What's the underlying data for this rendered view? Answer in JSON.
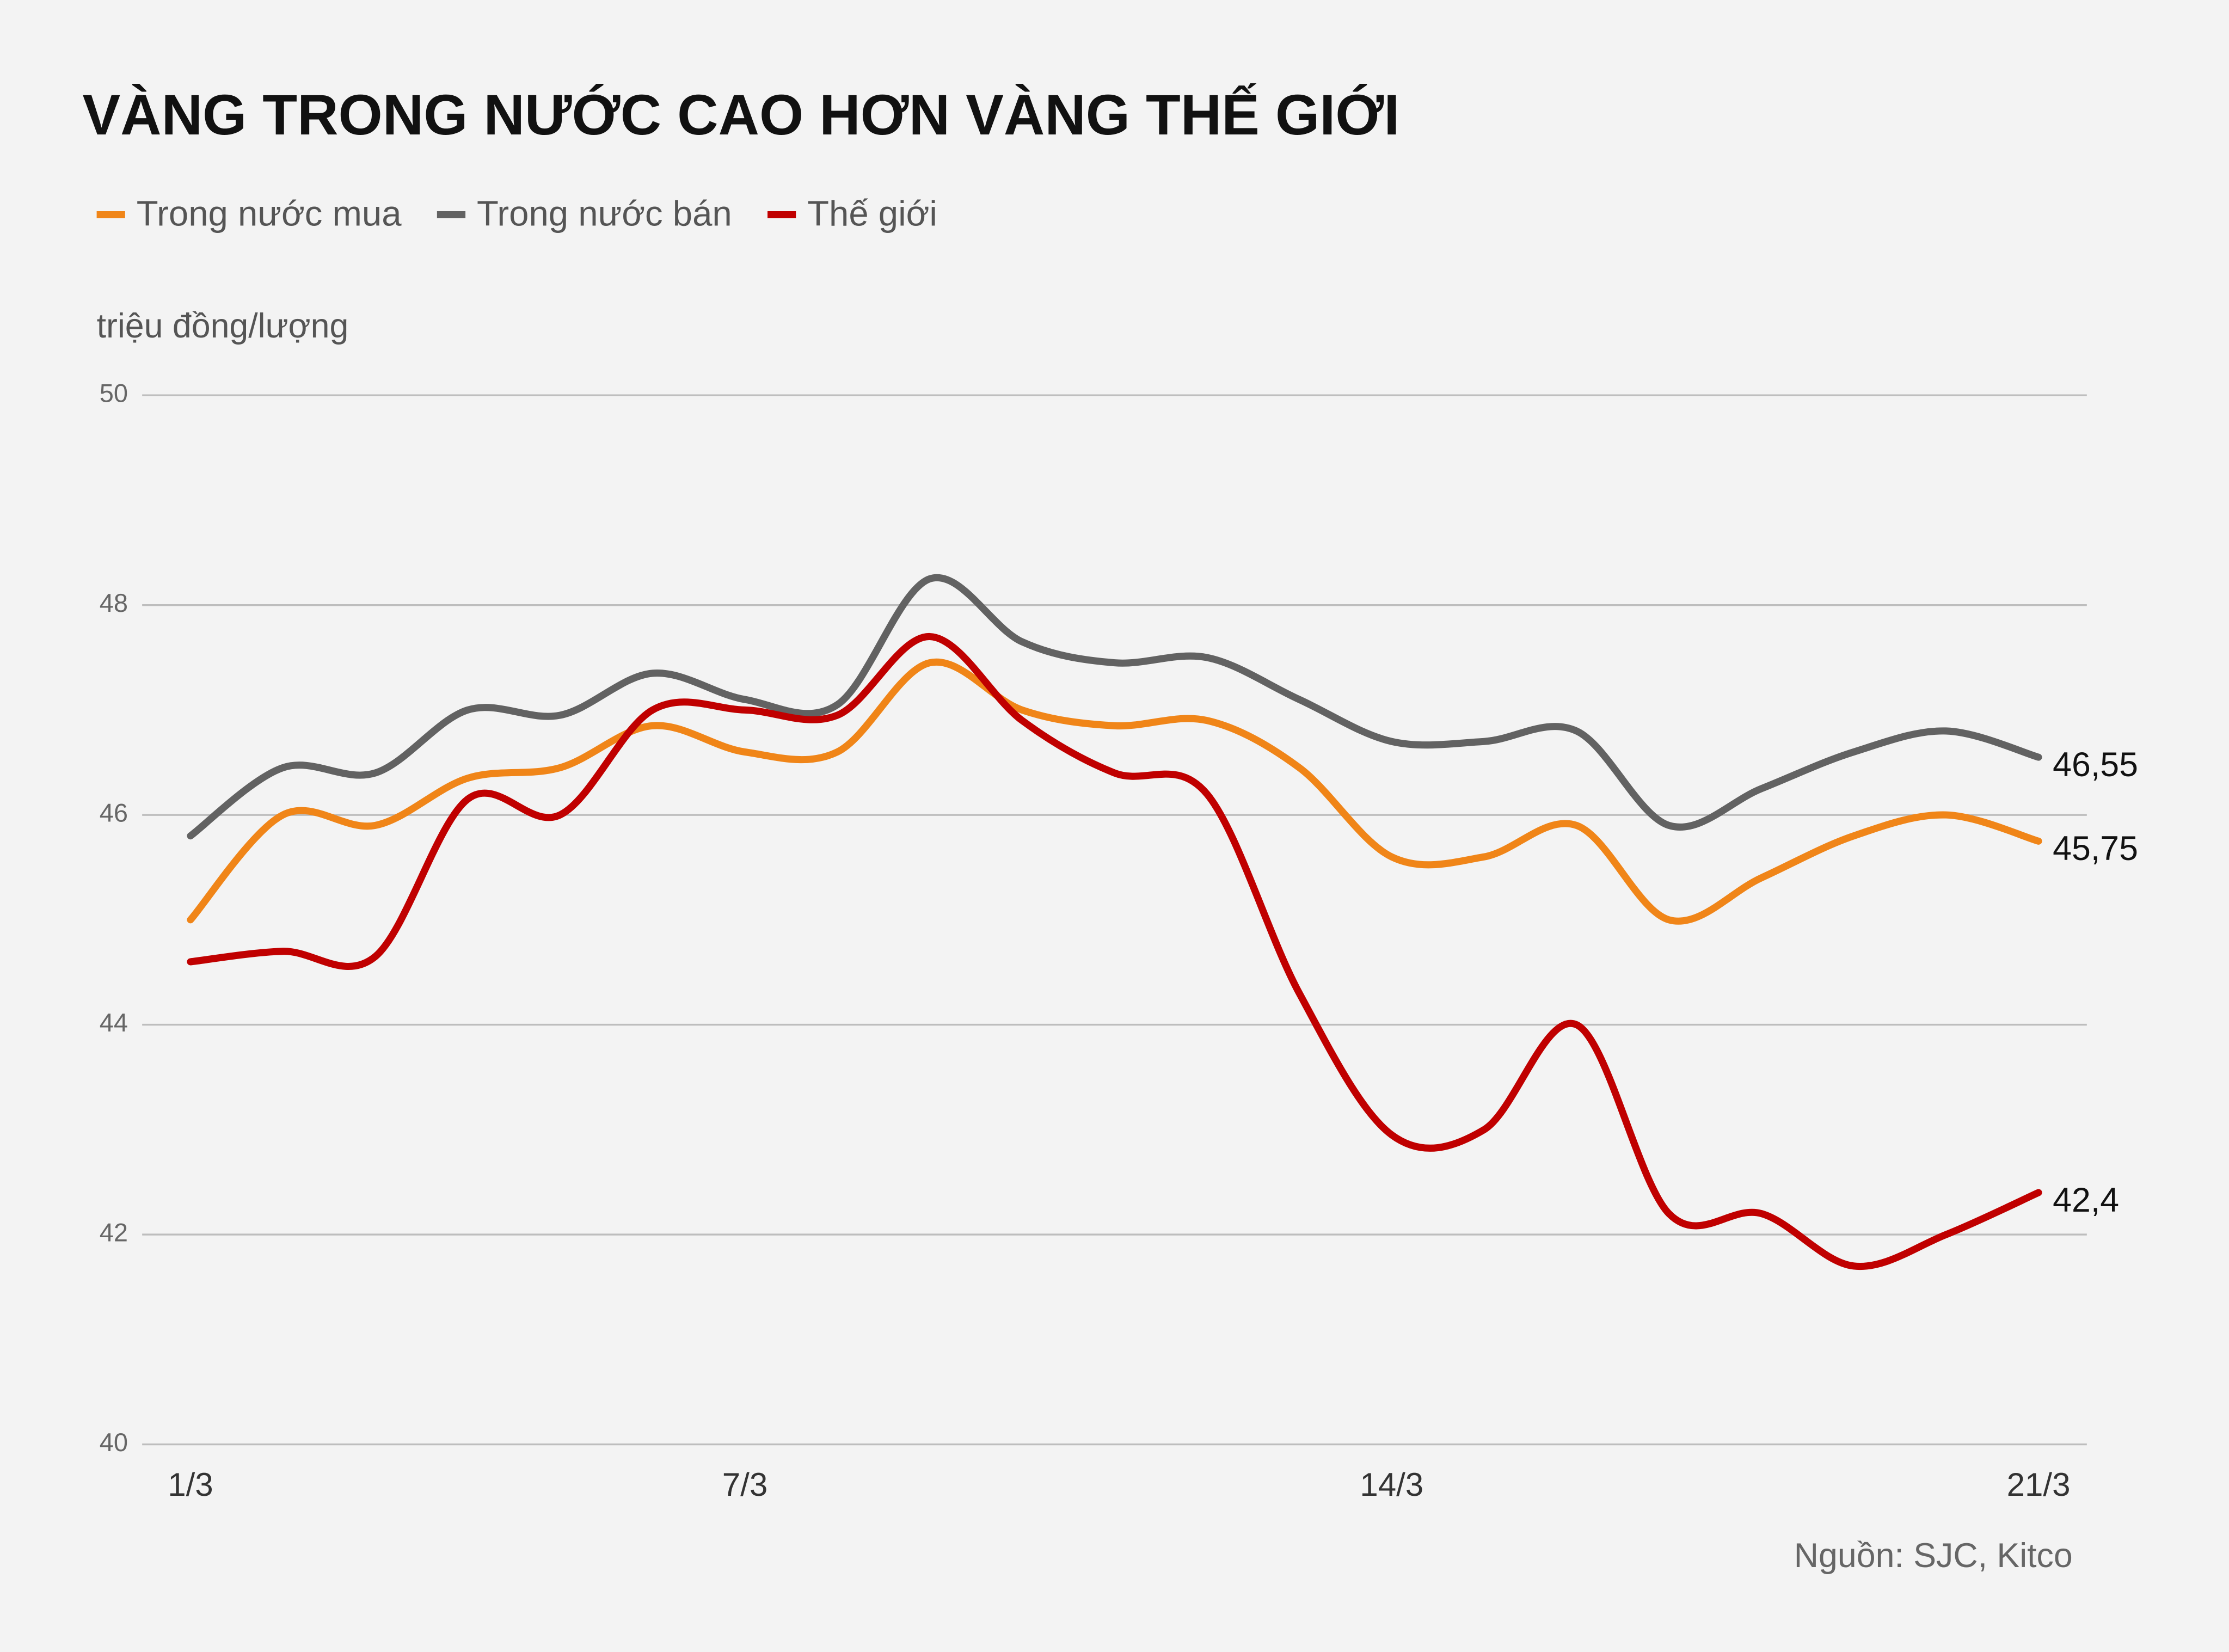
{
  "chart_data": {
    "type": "line",
    "title": "VÀNG TRONG NƯỚC CAO HƠN VÀNG THẾ GIỚI",
    "y_label": "triệu đồng/lượng",
    "source": "Nguồn: SJC, Kitco",
    "categories": [
      "1/3",
      null,
      null,
      null,
      null,
      null,
      "7/3",
      null,
      null,
      null,
      null,
      null,
      null,
      "14/3",
      null,
      null,
      null,
      null,
      null,
      null,
      "21/3"
    ],
    "ylim": [
      40,
      50
    ],
    "yticks": [
      40,
      42,
      44,
      46,
      48,
      50
    ],
    "grid": true,
    "legend": "top-left",
    "series": [
      {
        "name": "Trong nước mua",
        "color": "#f08518",
        "values": [
          45.0,
          46.0,
          45.9,
          46.35,
          46.45,
          46.85,
          46.6,
          46.6,
          47.45,
          47.0,
          46.85,
          46.9,
          46.45,
          45.6,
          45.6,
          45.9,
          45.0,
          45.4,
          45.8,
          46.0,
          45.75
        ],
        "value_labels": [
          null,
          null,
          null,
          null,
          null,
          null,
          null,
          null,
          null,
          null,
          null,
          null,
          null,
          null,
          null,
          null,
          null,
          null,
          null,
          null,
          "45,75"
        ]
      },
      {
        "name": "Trong nước bán",
        "color": "#626262",
        "values": [
          45.8,
          46.45,
          46.4,
          47.0,
          46.95,
          47.35,
          47.1,
          47.05,
          48.25,
          47.65,
          47.45,
          47.5,
          47.1,
          46.7,
          46.7,
          46.8,
          45.9,
          46.25,
          46.6,
          46.8,
          46.55
        ],
        "value_labels": [
          null,
          null,
          null,
          null,
          null,
          null,
          null,
          null,
          null,
          null,
          null,
          null,
          null,
          null,
          null,
          null,
          null,
          null,
          null,
          null,
          "46,55"
        ]
      },
      {
        "name": "Thế giới",
        "color": "#c00000",
        "values": [
          44.6,
          44.7,
          44.65,
          46.15,
          46.0,
          47.0,
          47.0,
          46.95,
          47.7,
          46.9,
          46.4,
          46.2,
          44.3,
          42.95,
          43.0,
          44.0,
          42.2,
          42.2,
          41.7,
          42.0,
          42.4
        ],
        "value_labels": [
          null,
          null,
          null,
          null,
          null,
          null,
          null,
          null,
          null,
          null,
          null,
          null,
          null,
          null,
          null,
          null,
          null,
          null,
          null,
          null,
          "42,4"
        ]
      }
    ]
  }
}
